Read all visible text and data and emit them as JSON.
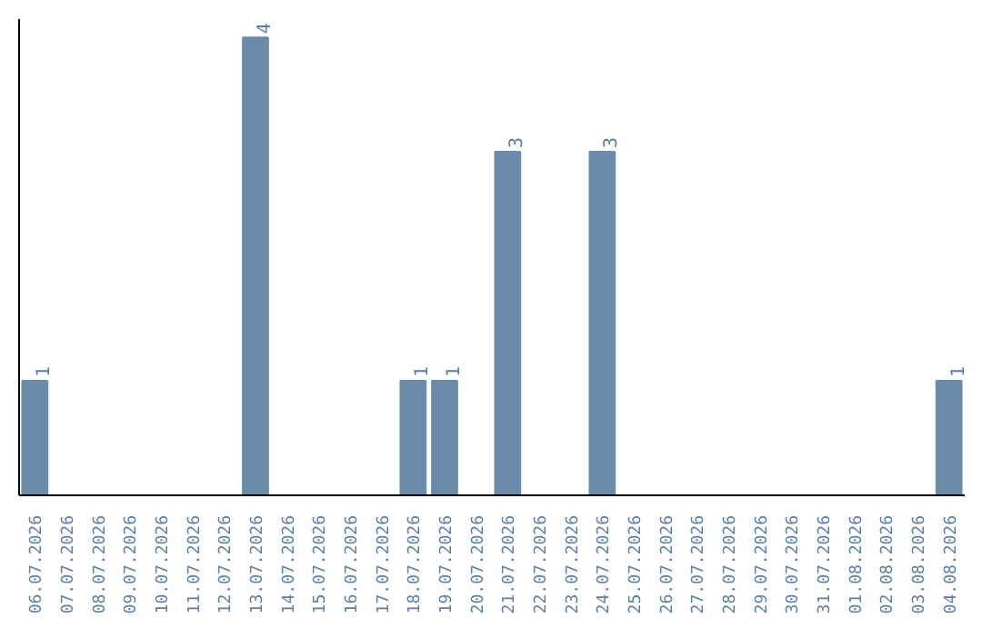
{
  "chart_data": {
    "type": "bar",
    "categories": [
      "06.07.2026",
      "07.07.2026",
      "08.07.2026",
      "09.07.2026",
      "10.07.2026",
      "11.07.2026",
      "12.07.2026",
      "13.07.2026",
      "14.07.2026",
      "15.07.2026",
      "16.07.2026",
      "17.07.2026",
      "18.07.2026",
      "19.07.2026",
      "20.07.2026",
      "21.07.2026",
      "22.07.2026",
      "23.07.2026",
      "24.07.2026",
      "25.07.2026",
      "26.07.2026",
      "27.07.2026",
      "28.07.2026",
      "29.07.2026",
      "30.07.2026",
      "31.07.2026",
      "01.08.2026",
      "02.08.2026",
      "03.08.2026",
      "04.08.2026"
    ],
    "values": [
      1,
      0,
      0,
      0,
      0,
      0,
      0,
      4,
      0,
      0,
      0,
      0,
      1,
      1,
      0,
      3,
      0,
      0,
      3,
      0,
      0,
      0,
      0,
      0,
      0,
      0,
      0,
      0,
      0,
      1
    ],
    "value_labels": [
      "1",
      null,
      null,
      null,
      null,
      null,
      null,
      "4",
      null,
      null,
      null,
      null,
      "1",
      "1",
      null,
      "3",
      null,
      null,
      "3",
      null,
      null,
      null,
      null,
      null,
      null,
      null,
      null,
      null,
      null,
      "1"
    ],
    "color": "#6a8aaa",
    "tick_labels": "x",
    "grid": false
  }
}
